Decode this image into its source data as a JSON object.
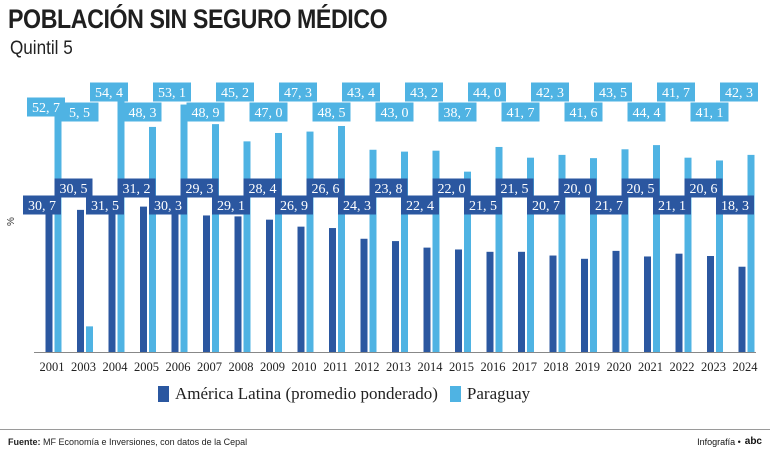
{
  "title": "POBLACIÓN SIN SEGURO MÉDICO",
  "subtitle": "Quintil 5",
  "footer": {
    "source_label": "Fuente:",
    "source_text": "MF Economía e Inversiones, con datos de la Cepal",
    "credit_label": "Infografía •",
    "brand": "abc"
  },
  "colors": {
    "america_latina": "#2b57a0",
    "paraguay": "#4fb3e3",
    "label_text": "#ffffff"
  },
  "chart_data": {
    "type": "bar",
    "title": "POBLACIÓN SIN SEGURO MÉDICO",
    "subtitle": "Quintil 5",
    "ylabel": "%",
    "xlabel": "",
    "ylim": [
      0,
      60
    ],
    "grid": false,
    "legend_position": "bottom",
    "categories": [
      "2001",
      "2003",
      "2004",
      "2005",
      "2006",
      "2007",
      "2008",
      "2009",
      "2010",
      "2011",
      "2012",
      "2013",
      "2014",
      "2015",
      "2016",
      "2017",
      "2018",
      "2019",
      "2020",
      "2021",
      "2022",
      "2023",
      "2024"
    ],
    "series": [
      {
        "name": "América Latina (promedio ponderado)",
        "values": [
          30.7,
          30.5,
          31.5,
          31.2,
          30.3,
          29.3,
          29.1,
          28.4,
          26.9,
          26.6,
          24.3,
          23.8,
          22.4,
          22.0,
          21.5,
          21.5,
          20.7,
          20.0,
          21.7,
          20.5,
          21.1,
          20.6,
          18.3
        ],
        "labels": [
          "30, 7",
          "30, 5",
          "31, 5",
          "31, 2",
          "30, 3",
          "29, 3",
          "29, 1",
          "28, 4",
          "26, 9",
          "26, 6",
          "24, 3",
          "23, 8",
          "22, 4",
          "22, 0",
          "21, 5",
          "21, 5",
          "20, 7",
          "20, 0",
          "21, 7",
          "20, 5",
          "21, 1",
          "20, 6",
          "18, 3"
        ]
      },
      {
        "name": "Paraguay",
        "values": [
          52.7,
          5.5,
          54.4,
          48.3,
          53.1,
          48.9,
          45.2,
          47.0,
          47.3,
          48.5,
          43.4,
          43.0,
          43.2,
          38.7,
          44.0,
          41.7,
          42.3,
          41.6,
          43.5,
          44.4,
          41.7,
          41.1,
          42.3
        ],
        "labels": [
          "52, 7",
          "5, 5",
          "54, 4",
          "48, 3",
          "53, 1",
          "48, 9",
          "45, 2",
          "47, 0",
          "47, 3",
          "48, 5",
          "43, 4",
          "43, 0",
          "43, 2",
          "38, 7",
          "44, 0",
          "41, 7",
          "42, 3",
          "41, 6",
          "43, 5",
          "44, 4",
          "41, 7",
          "41, 1",
          "42, 3"
        ]
      }
    ]
  }
}
